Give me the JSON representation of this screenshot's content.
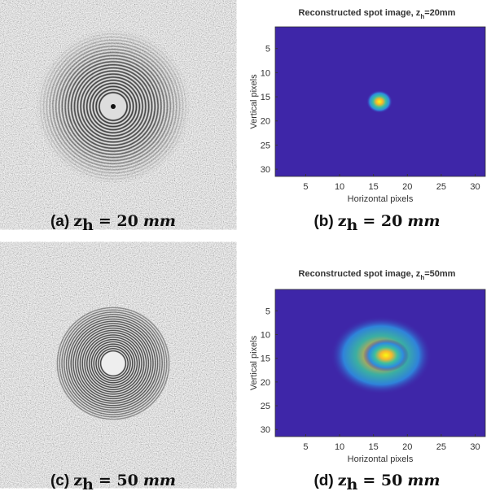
{
  "panels": [
    {
      "caption": {
        "label": "(a)",
        "var": "z",
        "sub": "h",
        "eq": "= 20",
        "unit": "mm"
      }
    },
    {
      "caption": {
        "label": "(b)",
        "var": "z",
        "sub": "h",
        "eq": "= 20",
        "unit": "mm"
      }
    },
    {
      "caption": {
        "label": "(c)",
        "var": "z",
        "sub": "h",
        "eq": "= 50",
        "unit": "mm"
      }
    },
    {
      "caption": {
        "label": "(d)",
        "var": "z",
        "sub": "h",
        "eq": "= 50",
        "unit": "mm"
      }
    }
  ],
  "chart_data": [
    {
      "type": "image",
      "title": {
        "text": "Reconstructed spot image, z",
        "sub": "h",
        "rest": "=20mm"
      },
      "xlabel": "Horizontal pixels",
      "ylabel": "Vertical pixels",
      "xlim": [
        0.5,
        31.5
      ],
      "ylim": [
        0.5,
        31.5
      ],
      "xticks": [
        5,
        10,
        15,
        20,
        25,
        30
      ],
      "yticks": [
        5,
        10,
        15,
        20,
        25,
        30
      ]
    },
    {
      "type": "image",
      "title": {
        "text": "Reconstructed spot image, z",
        "sub": "h",
        "rest": "=50mm"
      },
      "xlabel": "Horizontal pixels",
      "ylabel": "Vertical pixels",
      "xlim": [
        0.5,
        31.5
      ],
      "ylim": [
        0.5,
        31.5
      ],
      "xticks": [
        5,
        10,
        15,
        20,
        25,
        30
      ],
      "yticks": [
        5,
        10,
        15,
        20,
        25,
        30
      ]
    }
  ]
}
